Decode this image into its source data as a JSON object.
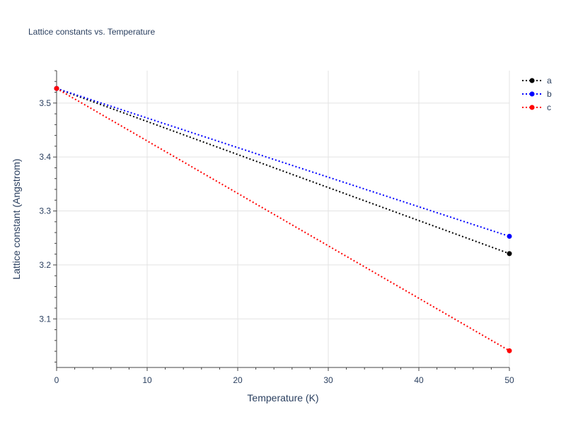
{
  "chart_data": {
    "type": "line",
    "title": "Lattice constants vs. Temperature",
    "xlabel": "Temperature (K)",
    "ylabel": "Lattice constant (Angstrom)",
    "xlim": [
      0,
      50
    ],
    "ylim": [
      3.01,
      3.56
    ],
    "x_ticks": [
      0,
      10,
      20,
      30,
      40,
      50
    ],
    "y_ticks": [
      3.1,
      3.2,
      3.3,
      3.4,
      3.5
    ],
    "x_tick_labels": [
      "0",
      "10",
      "20",
      "30",
      "40",
      "50"
    ],
    "y_tick_labels": [
      "3.1",
      "3.2",
      "3.3",
      "3.4",
      "3.5"
    ],
    "grid": true,
    "legend_position": "top-right",
    "line_style": "dotted",
    "series": [
      {
        "name": "a",
        "color": "#000000",
        "x": [
          0,
          50
        ],
        "y": [
          3.527,
          3.221
        ]
      },
      {
        "name": "b",
        "color": "#0000ff",
        "x": [
          0,
          50
        ],
        "y": [
          3.527,
          3.253
        ]
      },
      {
        "name": "c",
        "color": "#ff0000",
        "x": [
          0,
          50
        ],
        "y": [
          3.527,
          3.041
        ]
      }
    ]
  }
}
